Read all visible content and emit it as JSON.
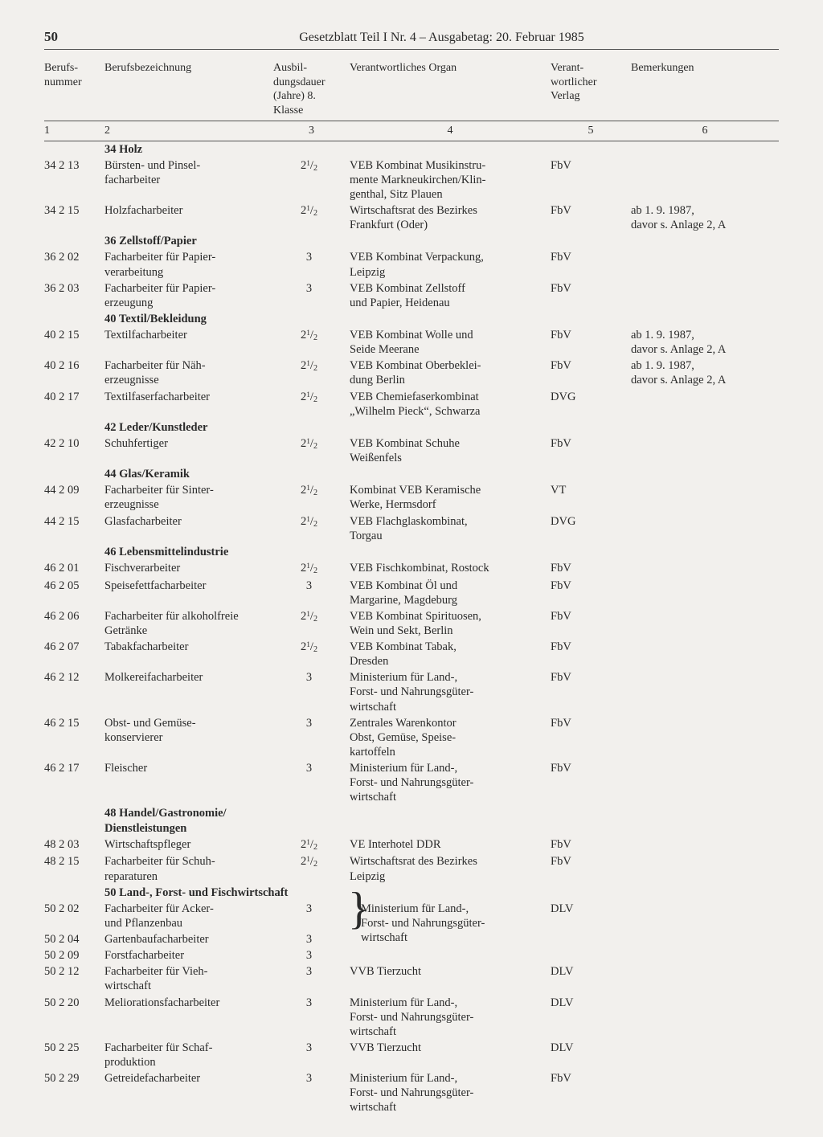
{
  "header": {
    "page_number": "50",
    "title": "Gesetzblatt Teil I Nr. 4 – Ausgabetag: 20. Februar 1985"
  },
  "columns": {
    "c1": "Berufs-\nnummer",
    "c2": "Berufsbezeichnung",
    "c3": "Ausbil-\ndungsdauer\n(Jahre)\n8. Klasse",
    "c4": "Verantwortliches Organ",
    "c5": "Verant-\nwortlicher\nVerlag",
    "c6": "Bemerkungen",
    "n1": "1",
    "n2": "2",
    "n3": "3",
    "n4": "4",
    "n5": "5",
    "n6": "6"
  },
  "sections": [
    {
      "label": "34 Holz",
      "rows": [
        {
          "num": "34 2 13",
          "name": "Bürsten- und Pinsel-\nfacharbeiter",
          "dur": "2½",
          "organ": "VEB Kombinat Musikinstru-\nmente Markneukirchen/Klin-\ngenthal, Sitz Plauen",
          "verlag": "FbV",
          "rem": ""
        },
        {
          "num": "34 2 15",
          "name": "Holzfacharbeiter",
          "dur": "2½",
          "organ": "Wirtschaftsrat des Bezirkes\nFrankfurt (Oder)",
          "verlag": "FbV",
          "rem": "ab 1. 9. 1987,\ndavor s. Anlage 2, A"
        }
      ]
    },
    {
      "label": "36 Zellstoff/Papier",
      "rows": [
        {
          "num": "36 2 02",
          "name": "Facharbeiter für Papier-\nverarbeitung",
          "dur": "3",
          "organ": "VEB Kombinat Verpackung,\nLeipzig",
          "verlag": "FbV",
          "rem": ""
        },
        {
          "num": "36 2 03",
          "name": "Facharbeiter für Papier-\nerzeugung",
          "dur": "3",
          "organ": "VEB Kombinat Zellstoff\nund Papier, Heidenau",
          "verlag": "FbV",
          "rem": ""
        }
      ]
    },
    {
      "label": "40 Textil/Bekleidung",
      "rows": [
        {
          "num": "40 2 15",
          "name": "Textilfacharbeiter",
          "dur": "2½",
          "organ": "VEB Kombinat Wolle und\nSeide Meerane",
          "verlag": "FbV",
          "rem": "ab 1. 9. 1987,\ndavor s. Anlage 2, A"
        },
        {
          "num": "40 2 16",
          "name": "Facharbeiter für Näh-\nerzeugnisse",
          "dur": "2½",
          "organ": "VEB Kombinat Oberbeklei-\ndung Berlin",
          "verlag": "FbV",
          "rem": "ab 1. 9. 1987,\ndavor s. Anlage 2, A"
        },
        {
          "num": "40 2 17",
          "name": "Textilfaserfacharbeiter",
          "dur": "2½",
          "organ": "VEB Chemiefaserkombinat\n„Wilhelm Pieck“, Schwarza",
          "verlag": "DVG",
          "rem": ""
        }
      ]
    },
    {
      "label": "42 Leder/Kunstleder",
      "rows": [
        {
          "num": "42 2 10",
          "name": "Schuhfertiger",
          "dur": "2½",
          "organ": "VEB Kombinat Schuhe\nWeißenfels",
          "verlag": "FbV",
          "rem": ""
        }
      ]
    },
    {
      "label": "44 Glas/Keramik",
      "rows": [
        {
          "num": "44 2 09",
          "name": "Facharbeiter für Sinter-\nerzeugnisse",
          "dur": "2½",
          "organ": "Kombinat VEB Keramische\nWerke, Hermsdorf",
          "verlag": "VT",
          "rem": ""
        },
        {
          "num": "44 2 15",
          "name": "Glasfacharbeiter",
          "dur": "2½",
          "organ": "VEB Flachglaskombinat,\nTorgau",
          "verlag": "DVG",
          "rem": ""
        }
      ]
    },
    {
      "label": "46 Lebensmittelindustrie",
      "rows": [
        {
          "num": "46 2 01",
          "name": "Fischverarbeiter",
          "dur": "2½",
          "organ": "VEB Fischkombinat, Rostock",
          "verlag": "FbV",
          "rem": ""
        },
        {
          "num": "46 2 05",
          "name": "Speisefettfacharbeiter",
          "dur": "3",
          "organ": "VEB Kombinat Öl und\nMargarine, Magdeburg",
          "verlag": "FbV",
          "rem": ""
        },
        {
          "num": "46 2 06",
          "name": "Facharbeiter für alkoholfreie\nGetränke",
          "dur": "2½",
          "organ": "VEB Kombinat Spirituosen,\nWein und Sekt, Berlin",
          "verlag": "FbV",
          "rem": ""
        },
        {
          "num": "46 2 07",
          "name": "Tabakfacharbeiter",
          "dur": "2½",
          "organ": "VEB Kombinat Tabak,\nDresden",
          "verlag": "FbV",
          "rem": ""
        },
        {
          "num": "46 2 12",
          "name": "Molkereifacharbeiter",
          "dur": "3",
          "organ": "Ministerium für Land-,\nForst- und Nahrungsgüter-\nwirtschaft",
          "verlag": "FbV",
          "rem": ""
        },
        {
          "num": "46 2 15",
          "name": "Obst- und Gemüse-\nkonservierer",
          "dur": "3",
          "organ": "Zentrales Warenkontor\nObst, Gemüse, Speise-\nkartoffeln",
          "verlag": "FbV",
          "rem": ""
        },
        {
          "num": "46 2 17",
          "name": "Fleischer",
          "dur": "3",
          "organ": "Ministerium für Land-,\nForst- und Nahrungsgüter-\nwirtschaft",
          "verlag": "FbV",
          "rem": ""
        }
      ]
    },
    {
      "label": "48 Handel/Gastronomie/\nDienstleistungen",
      "rows": [
        {
          "num": "48 2 03",
          "name": "Wirtschaftspfleger",
          "dur": "2½",
          "organ": "VE Interhotel DDR",
          "verlag": "FbV",
          "rem": ""
        },
        {
          "num": "48 2 15",
          "name": "Facharbeiter für Schuh-\nreparaturen",
          "dur": "2½",
          "organ": "Wirtschaftsrat des Bezirkes\nLeipzig",
          "verlag": "FbV",
          "rem": ""
        }
      ]
    },
    {
      "label": "50 Land-, Forst- und Fischwirtschaft",
      "rows": [
        {
          "num": "50 2 02",
          "name": "Facharbeiter für Acker-\nund Pflanzenbau",
          "dur": "3",
          "organ": "",
          "verlag": "",
          "rem": "",
          "brace_top": true
        },
        {
          "num": "50 2 04",
          "name": "Gartenbaufacharbeiter",
          "dur": "3",
          "organ": "Ministerium für Land-,\nForst- und Nahrungsgüter-\nwirtschaft",
          "verlag": "DLV",
          "rem": "",
          "brace_mid": true
        },
        {
          "num": "50 2 09",
          "name": "Forstfacharbeiter",
          "dur": "3",
          "organ": "",
          "verlag": "",
          "rem": "",
          "brace_bot": true
        },
        {
          "num": "50 2 12",
          "name": "Facharbeiter für Vieh-\nwirtschaft",
          "dur": "3",
          "organ": "VVB Tierzucht",
          "verlag": "DLV",
          "rem": ""
        },
        {
          "num": "50 2 20",
          "name": "Meliorationsfacharbeiter",
          "dur": "3",
          "organ": "Ministerium für Land-,\nForst- und Nahrungsgüter-\nwirtschaft",
          "verlag": "DLV",
          "rem": ""
        },
        {
          "num": "50 2 25",
          "name": "Facharbeiter für Schaf-\nproduktion",
          "dur": "3",
          "organ": "VVB Tierzucht",
          "verlag": "DLV",
          "rem": ""
        },
        {
          "num": "50 2 29",
          "name": "Getreidefacharbeiter",
          "dur": "3",
          "organ": "Ministerium für Land-,\nForst- und Nahrungsgüter-\nwirtschaft",
          "verlag": "FbV",
          "rem": ""
        }
      ]
    }
  ]
}
